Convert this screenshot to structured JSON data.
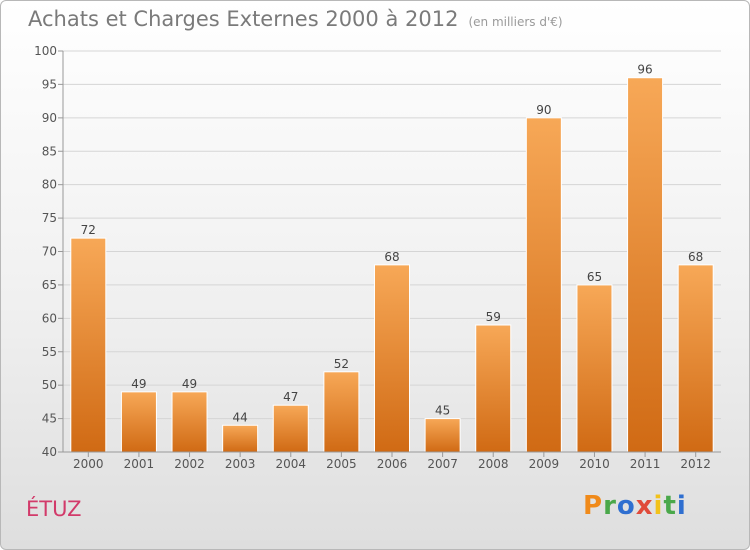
{
  "header": {
    "title": "Achats et Charges Externes 2000 à 2012",
    "unit": "(en milliers d'€)"
  },
  "footer": {
    "commune": "ÉTUZ",
    "brand": "Proxiti",
    "brand_colors": [
      "#f08a1a",
      "#4aa84a",
      "#2f6fd0",
      "#e04a3a",
      "#f2c21a",
      "#4aa84a",
      "#2f6fd0"
    ]
  },
  "colors": {
    "bar_top": "#f7a857",
    "bar_bottom": "#d06a14",
    "grid": "#d5d5d5",
    "axis_text": "#555555",
    "commune": "#d23a6a"
  },
  "chart_data": {
    "type": "bar",
    "categories": [
      "2000",
      "2001",
      "2002",
      "2003",
      "2004",
      "2005",
      "2006",
      "2007",
      "2008",
      "2009",
      "2010",
      "2011",
      "2012"
    ],
    "values": [
      72,
      49,
      49,
      44,
      47,
      52,
      68,
      45,
      59,
      90,
      65,
      96,
      68
    ],
    "title": "Achats et Charges Externes 2000 à 2012",
    "subtitle": "(en milliers d'€)",
    "ylim": [
      40,
      100
    ],
    "yticks": [
      40,
      45,
      50,
      55,
      60,
      65,
      70,
      75,
      80,
      85,
      90,
      95,
      100
    ],
    "grid": true,
    "data_labels": true
  }
}
